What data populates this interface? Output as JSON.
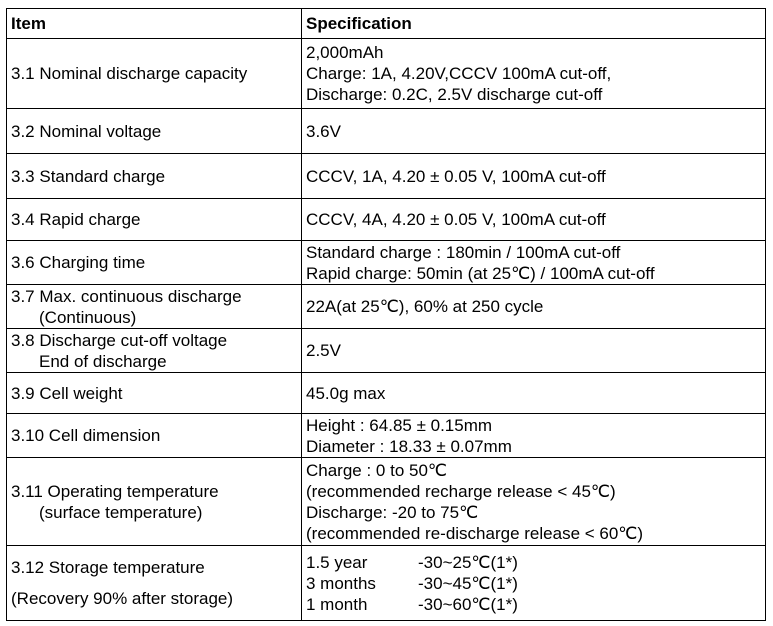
{
  "table": {
    "header": [
      "Item",
      "Specification"
    ],
    "rows": [
      [
        [
          "3.1 Nominal discharge capacity"
        ],
        [
          "2,000mAh",
          "Charge: 1A, 4.20V,CCCV 100mA cut-off,",
          "Discharge: 0.2C, 2.5V discharge cut-off"
        ]
      ],
      [
        [
          "3.2 Nominal voltage"
        ],
        [
          "3.6V"
        ]
      ],
      [
        [
          "3.3 Standard charge"
        ],
        [
          "CCCV, 1A, 4.20 ± 0.05 V, 100mA cut-off"
        ]
      ],
      [
        [
          "3.4 Rapid charge"
        ],
        [
          "CCCV, 4A, 4.20 ± 0.05 V, 100mA cut-off"
        ]
      ],
      [
        [
          "3.6 Charging time"
        ],
        [
          "Standard charge : 180min / 100mA cut-off",
          "Rapid charge: 50min (at 25℃) / 100mA cut-off"
        ]
      ],
      [
        [
          "3.7 Max. continuous discharge",
          "(Continuous)"
        ],
        [
          "22A(at 25℃), 60% at 250 cycle"
        ]
      ],
      [
        [
          "3.8 Discharge cut-off voltage",
          "End of discharge"
        ],
        [
          "2.5V"
        ]
      ],
      [
        [
          "3.9 Cell weight"
        ],
        [
          "45.0g max"
        ]
      ],
      [
        [
          "3.10 Cell dimension"
        ],
        [
          "Height : 64.85 ± 0.15mm",
          "Diameter : 18.33 ± 0.07mm"
        ]
      ],
      [
        [
          "3.11 Operating temperature",
          "(surface temperature)"
        ],
        [
          "Charge :   0 to 50℃",
          "(recommended recharge release < 45℃)",
          "Discharge: -20 to 75℃",
          "(recommended re-discharge release < 60℃)"
        ]
      ],
      [
        [
          "3.12 Storage temperature",
          "(Recovery 90% after storage)"
        ],
        [
          [
            "1.5 year",
            "-30~25℃(1*)"
          ],
          [
            "3 months",
            "-30~45℃(1*)"
          ],
          [
            "1 month",
            "-30~60℃(1*)"
          ]
        ]
      ]
    ]
  }
}
